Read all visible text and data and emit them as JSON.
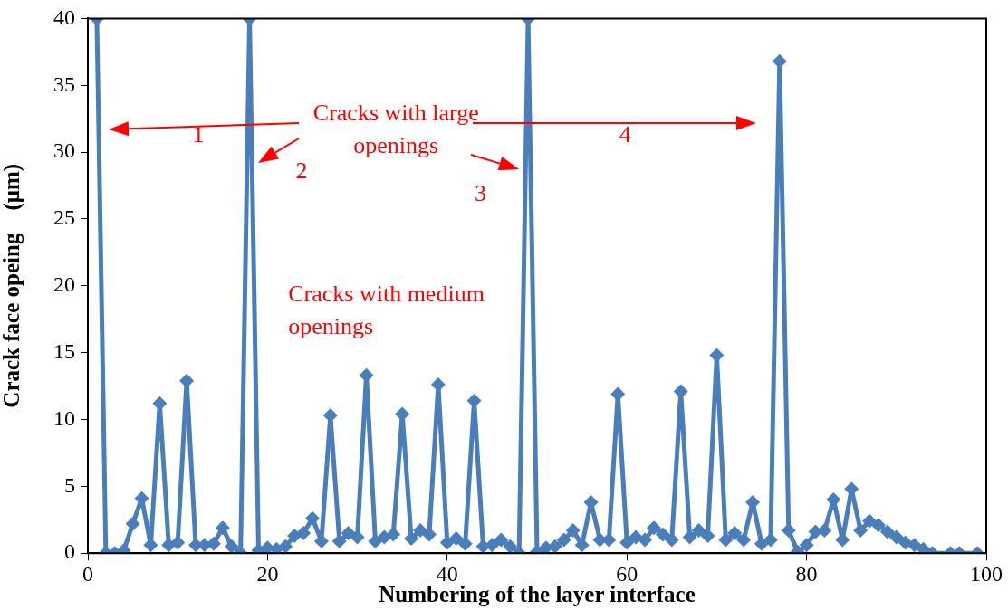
{
  "chart_data": {
    "type": "line",
    "xlabel": "Numbering of the layer interface",
    "ylabel": "Crack face opeing    (μm)",
    "x": [
      1,
      2,
      3,
      4,
      5,
      6,
      7,
      8,
      9,
      10,
      11,
      12,
      13,
      14,
      15,
      16,
      17,
      18,
      19,
      20,
      21,
      22,
      23,
      24,
      25,
      26,
      27,
      28,
      29,
      30,
      31,
      32,
      33,
      34,
      35,
      36,
      37,
      38,
      39,
      40,
      41,
      42,
      43,
      44,
      45,
      46,
      47,
      48,
      49,
      50,
      51,
      52,
      53,
      54,
      55,
      56,
      57,
      58,
      59,
      60,
      61,
      62,
      63,
      64,
      65,
      66,
      67,
      68,
      69,
      70,
      71,
      72,
      73,
      74,
      75,
      76,
      77,
      78,
      79,
      80,
      81,
      82,
      83,
      84,
      85,
      86,
      87,
      88,
      89,
      90,
      91,
      92,
      93,
      94,
      96,
      97,
      99
    ],
    "series": [
      {
        "color": "#4a7ebb",
        "values": [
          40,
          0,
          0,
          0.2,
          2.2,
          4.1,
          0.6,
          11.2,
          0.6,
          0.8,
          12.9,
          0.6,
          0.6,
          0.7,
          1.9,
          0.5,
          0,
          40,
          0.2,
          0.4,
          0.3,
          0.5,
          1.3,
          1.5,
          2.6,
          0.9,
          10.3,
          0.9,
          1.5,
          1.2,
          13.3,
          0.9,
          1.2,
          1.4,
          10.4,
          1.1,
          1.7,
          1.4,
          12.6,
          0.8,
          1.1,
          0.7,
          11.4,
          0.5,
          0.6,
          1.0,
          0.5,
          0,
          40,
          0.1,
          0.4,
          0.5,
          1.0,
          1.7,
          0.6,
          3.8,
          1.0,
          1.0,
          11.9,
          0.8,
          1.2,
          1.0,
          1.9,
          1.4,
          1.0,
          12.1,
          1.2,
          1.7,
          1.3,
          14.8,
          1.0,
          1.5,
          1.0,
          3.8,
          0.7,
          1.0,
          36.8,
          1.7,
          0.1,
          0.6,
          1.6,
          1.7,
          4.0,
          1.0,
          4.8,
          1.7,
          2.4,
          2.1,
          1.6,
          1.2,
          0.8,
          0.6,
          0.3,
          0,
          0,
          0,
          0
        ]
      }
    ],
    "xlim": [
      0,
      100
    ],
    "xticks": [
      0,
      20,
      40,
      60,
      80,
      100
    ],
    "ylim": [
      0,
      40
    ],
    "yticks": [
      0,
      5,
      10,
      15,
      20,
      25,
      30,
      35,
      40
    ],
    "grid": false,
    "legend": false,
    "marker": "diamond",
    "line_style": "solid",
    "annotations": [
      "Cracks with large openings",
      "1",
      "2",
      "3",
      "4",
      "Cracks with medium openings"
    ]
  }
}
